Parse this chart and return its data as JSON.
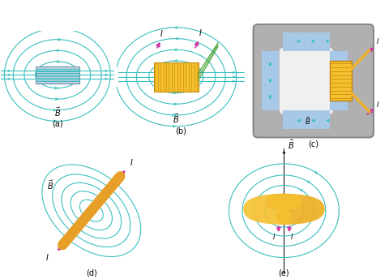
{
  "field_line_color": "#3bbfbf",
  "conductor_color": "#f0b030",
  "arrow_color": "#cc30a0",
  "red_arrow_color": "#cc2020",
  "green_color": "#50b050",
  "gray_color": "#a0a0a0",
  "gray_dark": "#888888",
  "wire_blue": "#b0c8e8",
  "bg": "#ffffff",
  "subplot_labels": [
    "(a)",
    "(b)",
    "(c)",
    "(d)",
    "(e)"
  ]
}
